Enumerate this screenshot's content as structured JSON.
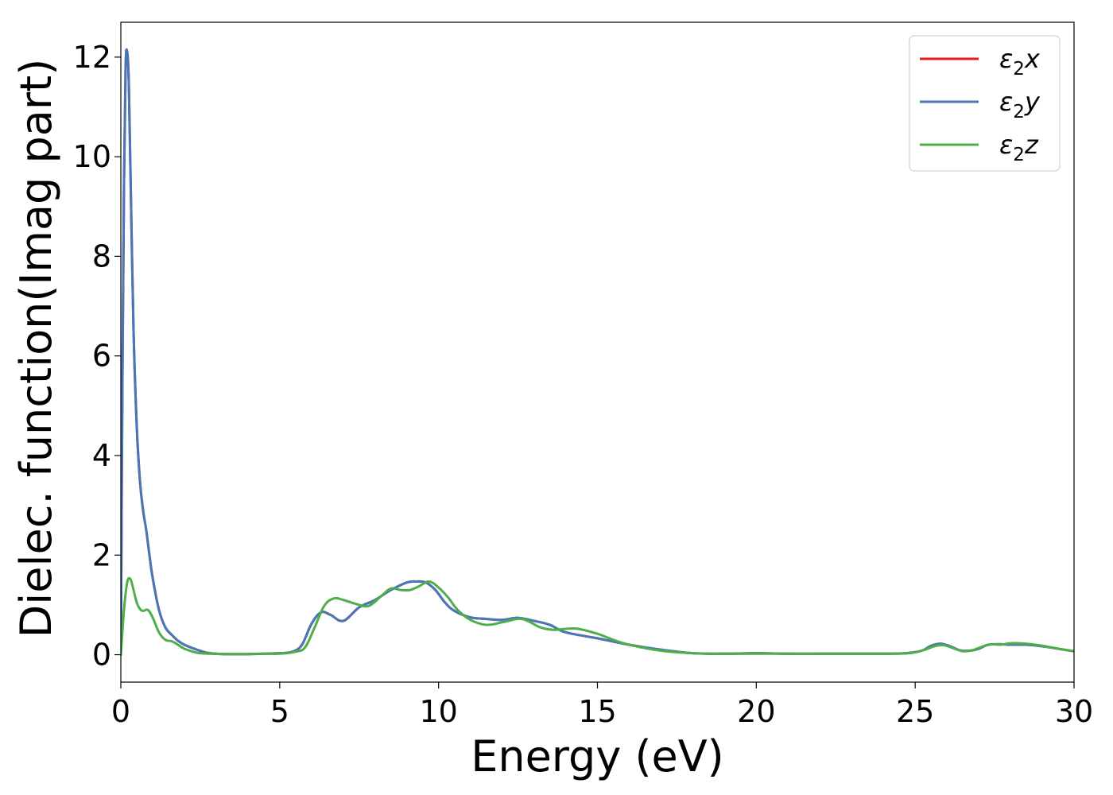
{
  "chart_data": {
    "type": "line",
    "title": "",
    "xlabel": "Energy (eV)",
    "ylabel": "Dielec. function(Imag part)",
    "xlim": [
      0,
      30
    ],
    "ylim": [
      -0.55,
      12.7
    ],
    "xticks": [
      0,
      5,
      10,
      15,
      20,
      25,
      30
    ],
    "yticks": [
      0,
      2,
      4,
      6,
      8,
      10,
      12
    ],
    "grid": false,
    "legend_position": "top-right",
    "series": [
      {
        "name": "ε₂x",
        "legend_main": "ε",
        "legend_sub": "2",
        "legend_axis": "x",
        "color": "#e41a1c",
        "x": [
          0,
          0.05,
          0.1,
          0.15,
          0.2,
          0.25,
          0.3,
          0.4,
          0.5,
          0.6,
          0.7,
          0.8,
          0.9,
          1.0,
          1.2,
          1.4,
          1.6,
          1.8,
          2.0,
          2.4,
          2.8,
          3.5,
          4.5,
          5.0,
          5.4,
          5.7,
          6.0,
          6.3,
          6.6,
          7.0,
          7.5,
          8.0,
          8.5,
          9.0,
          9.3,
          9.6,
          9.9,
          10.2,
          10.5,
          11.0,
          11.5,
          12.0,
          12.5,
          13.0,
          13.5,
          14.0,
          15.0,
          16.0,
          17.0,
          18.0,
          19.0,
          20.0,
          21.0,
          22.0,
          23.0,
          24.0,
          24.7,
          25.2,
          25.5,
          25.8,
          26.1,
          26.4,
          26.7,
          27.0,
          27.3,
          27.7,
          28.0,
          28.5,
          29.0,
          29.5,
          30.0
        ],
        "y": [
          0,
          5.5,
          9.5,
          11.8,
          12.1,
          11.5,
          9.8,
          6.5,
          4.6,
          3.5,
          2.9,
          2.5,
          2.0,
          1.55,
          0.9,
          0.55,
          0.4,
          0.28,
          0.2,
          0.1,
          0.03,
          0.01,
          0.02,
          0.03,
          0.06,
          0.2,
          0.62,
          0.85,
          0.8,
          0.68,
          0.95,
          1.1,
          1.3,
          1.45,
          1.47,
          1.45,
          1.3,
          1.05,
          0.88,
          0.75,
          0.72,
          0.7,
          0.74,
          0.68,
          0.6,
          0.45,
          0.33,
          0.2,
          0.1,
          0.03,
          0.02,
          0.03,
          0.02,
          0.02,
          0.02,
          0.02,
          0.03,
          0.08,
          0.18,
          0.22,
          0.17,
          0.09,
          0.08,
          0.12,
          0.2,
          0.21,
          0.2,
          0.2,
          0.17,
          0.12,
          0.07
        ]
      },
      {
        "name": "ε₂y",
        "legend_main": "ε",
        "legend_sub": "2",
        "legend_axis": "y",
        "color": "#4777b8",
        "x": [
          0,
          0.05,
          0.1,
          0.15,
          0.2,
          0.25,
          0.3,
          0.4,
          0.5,
          0.6,
          0.7,
          0.8,
          0.9,
          1.0,
          1.2,
          1.4,
          1.6,
          1.8,
          2.0,
          2.4,
          2.8,
          3.5,
          4.5,
          5.0,
          5.4,
          5.7,
          6.0,
          6.3,
          6.6,
          7.0,
          7.5,
          8.0,
          8.5,
          9.0,
          9.3,
          9.6,
          9.9,
          10.2,
          10.5,
          11.0,
          11.5,
          12.0,
          12.5,
          13.0,
          13.5,
          14.0,
          15.0,
          16.0,
          17.0,
          18.0,
          19.0,
          20.0,
          21.0,
          22.0,
          23.0,
          24.0,
          24.7,
          25.2,
          25.5,
          25.8,
          26.1,
          26.4,
          26.7,
          27.0,
          27.3,
          27.7,
          28.0,
          28.5,
          29.0,
          29.5,
          30.0
        ],
        "y": [
          0,
          5.5,
          9.5,
          11.8,
          12.1,
          11.5,
          9.8,
          6.5,
          4.6,
          3.5,
          2.9,
          2.5,
          2.0,
          1.55,
          0.9,
          0.55,
          0.4,
          0.28,
          0.2,
          0.1,
          0.03,
          0.01,
          0.02,
          0.03,
          0.06,
          0.2,
          0.62,
          0.85,
          0.8,
          0.68,
          0.95,
          1.1,
          1.3,
          1.45,
          1.47,
          1.45,
          1.3,
          1.05,
          0.88,
          0.75,
          0.72,
          0.7,
          0.74,
          0.68,
          0.6,
          0.45,
          0.33,
          0.2,
          0.1,
          0.03,
          0.02,
          0.03,
          0.02,
          0.02,
          0.02,
          0.02,
          0.03,
          0.08,
          0.18,
          0.22,
          0.17,
          0.09,
          0.08,
          0.12,
          0.2,
          0.21,
          0.2,
          0.2,
          0.17,
          0.12,
          0.07
        ]
      },
      {
        "name": "ε₂z",
        "legend_main": "ε",
        "legend_sub": "2",
        "legend_axis": "z",
        "color": "#4daf4a",
        "x": [
          0,
          0.1,
          0.2,
          0.3,
          0.4,
          0.5,
          0.6,
          0.7,
          0.85,
          1.0,
          1.2,
          1.4,
          1.6,
          1.8,
          2.0,
          2.4,
          2.8,
          3.5,
          4.5,
          5.0,
          5.5,
          5.8,
          6.1,
          6.4,
          6.7,
          7.0,
          7.4,
          7.8,
          8.2,
          8.5,
          8.8,
          9.1,
          9.4,
          9.7,
          10.0,
          10.3,
          10.6,
          11.0,
          11.5,
          12.0,
          12.5,
          12.8,
          13.2,
          13.6,
          14.0,
          14.4,
          15.0,
          15.5,
          16.0,
          17.0,
          18.0,
          19.0,
          20.0,
          21.0,
          22.0,
          23.0,
          24.0,
          24.8,
          25.3,
          25.6,
          25.9,
          26.2,
          26.5,
          26.8,
          27.1,
          27.4,
          27.7,
          28.0,
          28.5,
          29.0,
          29.5,
          30.0
        ],
        "y": [
          0,
          0.9,
          1.45,
          1.52,
          1.3,
          1.05,
          0.92,
          0.88,
          0.9,
          0.75,
          0.45,
          0.3,
          0.27,
          0.2,
          0.12,
          0.04,
          0.02,
          0.01,
          0.02,
          0.02,
          0.06,
          0.15,
          0.55,
          0.98,
          1.13,
          1.1,
          1.02,
          0.98,
          1.18,
          1.33,
          1.3,
          1.3,
          1.38,
          1.47,
          1.35,
          1.15,
          0.9,
          0.7,
          0.6,
          0.65,
          0.72,
          0.68,
          0.55,
          0.5,
          0.52,
          0.52,
          0.42,
          0.3,
          0.2,
          0.08,
          0.03,
          0.02,
          0.02,
          0.02,
          0.02,
          0.02,
          0.02,
          0.03,
          0.1,
          0.17,
          0.19,
          0.13,
          0.07,
          0.09,
          0.16,
          0.21,
          0.2,
          0.23,
          0.22,
          0.18,
          0.12,
          0.07
        ]
      }
    ]
  }
}
